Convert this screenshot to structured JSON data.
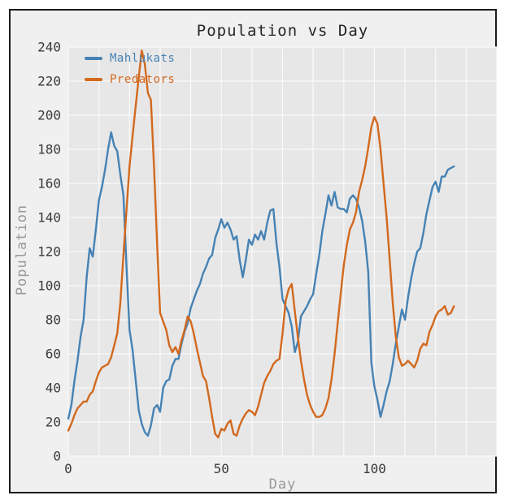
{
  "figure": {
    "frame_border_color": "#1c1c1c",
    "figure_bg": "#f0f0f0",
    "axes_bg": "#e7e7e7",
    "grid_color": "#fafafa",
    "tick_label_color": "#3a3a3a",
    "axis_label_color": "#9a9a9a",
    "title_color": "#262626"
  },
  "chart_data": {
    "type": "line",
    "title": "Population vs Day",
    "xlabel": "Day",
    "ylabel": "Population",
    "grid": true,
    "legend_position": "upper left",
    "xlim": [
      0,
      140
    ],
    "ylim": [
      0,
      240
    ],
    "x_tick_labels": [
      0,
      50,
      100
    ],
    "y_tick_labels": [
      0,
      20,
      40,
      60,
      80,
      100,
      120,
      140,
      160,
      180,
      200,
      220,
      240
    ],
    "x_grid_step": 10,
    "y_grid_step": 20,
    "x": [
      0,
      1,
      2,
      3,
      4,
      5,
      6,
      7,
      8,
      9,
      10,
      11,
      12,
      13,
      14,
      15,
      16,
      17,
      18,
      19,
      20,
      21,
      22,
      23,
      24,
      25,
      26,
      27,
      28,
      29,
      30,
      31,
      32,
      33,
      34,
      35,
      36,
      37,
      38,
      39,
      40,
      41,
      42,
      43,
      44,
      45,
      46,
      47,
      48,
      49,
      50,
      51,
      52,
      53,
      54,
      55,
      56,
      57,
      58,
      59,
      60,
      61,
      62,
      63,
      64,
      65,
      66,
      67,
      68,
      69,
      70,
      71,
      72,
      73,
      74,
      75,
      76,
      77,
      78,
      79,
      80,
      81,
      82,
      83,
      84,
      85,
      86,
      87,
      88,
      89,
      90,
      91,
      92,
      93,
      94,
      95,
      96,
      97,
      98,
      99,
      100,
      101,
      102,
      103,
      104,
      105,
      106,
      107,
      108,
      109,
      110,
      111,
      112,
      113,
      114,
      115,
      116,
      117,
      118,
      119,
      120,
      121,
      122,
      123,
      124,
      125,
      126
    ],
    "series": [
      {
        "name": "Mahlukats",
        "color": "#4682b4",
        "values": [
          22,
          30,
          44,
          56,
          70,
          80,
          105,
          122,
          117,
          133,
          150,
          158,
          168,
          180,
          190,
          182,
          179,
          165,
          153,
          112,
          74,
          62,
          45,
          27,
          19,
          14,
          12,
          18,
          28,
          30,
          26,
          40,
          44,
          45,
          53,
          57,
          57,
          66,
          73,
          78,
          87,
          92,
          97,
          101,
          107,
          111,
          116,
          118,
          128,
          133,
          139,
          134,
          137,
          133,
          127,
          129,
          115,
          105,
          115,
          127,
          124,
          130,
          127,
          132,
          127,
          137,
          144,
          145,
          125,
          111,
          92,
          88,
          84,
          76,
          61,
          67,
          82,
          85,
          88,
          92,
          95,
          107,
          118,
          132,
          142,
          153,
          147,
          155,
          146,
          145,
          145,
          143,
          151,
          153,
          151,
          146,
          138,
          126,
          108,
          55,
          41,
          33,
          23,
          30,
          38,
          44,
          54,
          66,
          76,
          86,
          80,
          93,
          104,
          113,
          120,
          122,
          131,
          142,
          150,
          158,
          161,
          155,
          164,
          164,
          168,
          169,
          170
        ]
      },
      {
        "name": "Predators",
        "color": "#d2691e",
        "values": [
          15,
          19,
          24,
          28,
          30,
          32,
          32,
          36,
          38,
          44,
          49,
          52,
          53,
          54,
          58,
          65,
          72,
          90,
          118,
          144,
          170,
          188,
          205,
          222,
          238,
          230,
          213,
          209,
          170,
          125,
          84,
          79,
          74,
          65,
          61,
          64,
          60,
          68,
          74,
          82,
          79,
          72,
          63,
          55,
          47,
          44,
          34,
          23,
          13,
          11,
          16,
          15,
          19,
          21,
          13,
          12,
          18,
          22,
          25,
          27,
          26,
          24,
          29,
          36,
          43,
          47,
          50,
          54,
          56,
          57,
          72,
          91,
          98,
          101,
          85,
          70,
          56,
          45,
          36,
          30,
          26,
          23,
          23,
          24,
          28,
          34,
          45,
          60,
          78,
          95,
          112,
          124,
          133,
          137,
          143,
          155,
          162,
          170,
          181,
          193,
          199,
          195,
          180,
          160,
          140,
          115,
          90,
          70,
          58,
          53,
          54,
          56,
          54,
          52,
          56,
          63,
          66,
          65,
          73,
          77,
          82,
          85,
          86,
          88,
          83,
          84,
          88
        ]
      }
    ]
  }
}
